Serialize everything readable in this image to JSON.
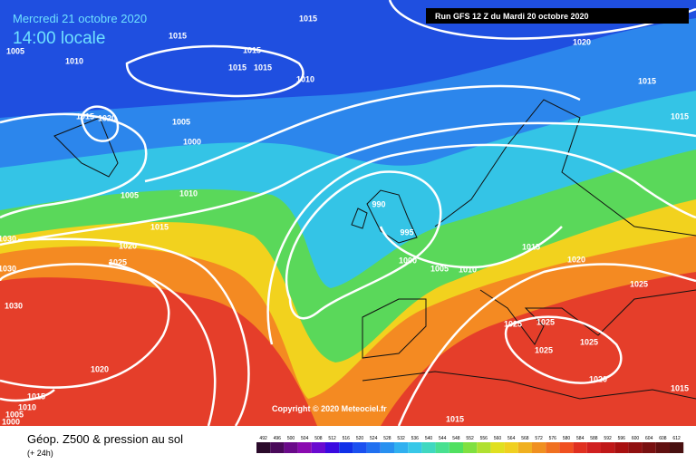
{
  "header": {
    "date": "Mercredi 21 octobre 2020",
    "time": "14:00 locale",
    "run": "Run GFS 12 Z du Mardi 20 octobre 2020"
  },
  "copyright": "Copyright © 2020 Meteociel.fr",
  "footer": {
    "title": "Géop. Z500 & pression au sol",
    "lead": "(+ 24h)"
  },
  "scale": {
    "labels": [
      492,
      496,
      500,
      504,
      508,
      512,
      516,
      520,
      524,
      528,
      532,
      536,
      540,
      544,
      548,
      552,
      556,
      560,
      564,
      568,
      572,
      576,
      580,
      584,
      588,
      592,
      596,
      600,
      604,
      608,
      612
    ]
  },
  "isobars": [
    "1005",
    "1010",
    "1015",
    "1020",
    "1015",
    "1015",
    "1015",
    "1015",
    "1010",
    "1005",
    "1000",
    "1005",
    "1010",
    "1015",
    "1020",
    "1025",
    "990",
    "995",
    "1000",
    "1005",
    "1010",
    "1020",
    "1015",
    "1015",
    "1030",
    "1030",
    "1030",
    "1020",
    "1015",
    "1010",
    "1005",
    "1000",
    "1015",
    "1015",
    "1025",
    "1025",
    "1025",
    "1025",
    "1020",
    "1025",
    "1015",
    "1020",
    "1015"
  ]
}
